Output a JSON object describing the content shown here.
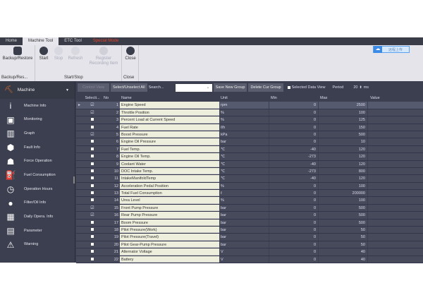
{
  "tabs": [
    "Home",
    "Machine Tool",
    "ETC Tool",
    "Special Mode"
  ],
  "ribbon": {
    "backup_label": "Backup/Restore",
    "backup_group": "Backup/Res...",
    "start": "Start",
    "stop": "Stop",
    "refresh": "Refresh",
    "register": "Register Recording Item",
    "startstop_group": "Start/Stop",
    "close": "Close",
    "close_group": "Close"
  },
  "cloud_button": "远程上传",
  "sidebar": {
    "header": "Machine",
    "items": [
      {
        "label": "Machine Info",
        "icon": "info-icon",
        "glyph": "i"
      },
      {
        "label": "Monitoring",
        "icon": "monitor-icon",
        "glyph": "▣"
      },
      {
        "label": "Graph",
        "icon": "graph-icon",
        "glyph": "▥"
      },
      {
        "label": "Fault Info",
        "icon": "fault-icon",
        "glyph": "⬢"
      },
      {
        "label": "Force Operation",
        "icon": "force-operation-icon",
        "glyph": "☗"
      },
      {
        "label": "Fuel Consumption",
        "icon": "fuel-icon",
        "glyph": "⛽"
      },
      {
        "label": "Operation Hours",
        "icon": "clock-icon",
        "glyph": "◷"
      },
      {
        "label": "Filter/Oil Info",
        "icon": "oil-drop-icon",
        "glyph": "●"
      },
      {
        "label": "Daily Opera. Info",
        "icon": "calendar-icon",
        "glyph": "▦"
      },
      {
        "label": "Parameter",
        "icon": "clipboard-icon",
        "glyph": "▤"
      },
      {
        "label": "Warning",
        "icon": "warning-icon",
        "glyph": "⚠"
      }
    ]
  },
  "toolbar": {
    "control_view": "Control View",
    "select_all": "Select/Unselect All",
    "search": "Search...",
    "save_group": "Save New Group",
    "delete_group": "Delete Cur Group",
    "selected_view": "Selected Data View",
    "period_label": "Period",
    "period_value": "20",
    "period_unit": "ms"
  },
  "columns": [
    "Selecti...",
    "No",
    "Name",
    "Unit",
    "Min",
    "Max",
    "Value"
  ],
  "rows": [
    {
      "checked": true,
      "no": "1",
      "name": "Engine Speed",
      "unit": "rpm",
      "min": "0",
      "max": "2500",
      "value": ""
    },
    {
      "checked": true,
      "no": "2",
      "name": "Throttle Position",
      "unit": "%",
      "min": "0",
      "max": "100",
      "value": ""
    },
    {
      "checked": false,
      "no": "3",
      "name": "Percent Load at Current Speed",
      "unit": "%",
      "min": "0",
      "max": "125",
      "value": ""
    },
    {
      "checked": false,
      "no": "4",
      "name": "Fuel Rate",
      "unit": "ℓ/h",
      "min": "0",
      "max": "150",
      "value": ""
    },
    {
      "checked": true,
      "no": "5",
      "name": "Boost Pressure",
      "unit": "kPa",
      "min": "0",
      "max": "500",
      "value": ""
    },
    {
      "checked": false,
      "no": "6",
      "name": "Engine Oil Pressure",
      "unit": "bar",
      "min": "0",
      "max": "10",
      "value": ""
    },
    {
      "checked": false,
      "no": "7",
      "name": "Fuel Temp.",
      "unit": "℃",
      "min": "-40",
      "max": "120",
      "value": ""
    },
    {
      "checked": false,
      "no": "8",
      "name": "Engine Oil Temp.",
      "unit": "℃",
      "min": "-273",
      "max": "120",
      "value": ""
    },
    {
      "checked": false,
      "no": "9",
      "name": "Coolant Water",
      "unit": "℃",
      "min": "-40",
      "max": "120",
      "value": ""
    },
    {
      "checked": false,
      "no": "10",
      "name": "DOC Intake Temp.",
      "unit": "℃",
      "min": "-273",
      "max": "800",
      "value": ""
    },
    {
      "checked": false,
      "no": "11",
      "name": "IntakeManifoldTemp",
      "unit": "℃",
      "min": "-40",
      "max": "120",
      "value": ""
    },
    {
      "checked": false,
      "no": "12",
      "name": "Acceleration Pedal Position",
      "unit": "%",
      "min": "0",
      "max": "100",
      "value": ""
    },
    {
      "checked": false,
      "no": "13",
      "name": "Total Fuel Consumption",
      "unit": "ℓ",
      "min": "0",
      "max": "200000",
      "value": ""
    },
    {
      "checked": false,
      "no": "14",
      "name": "Urea Level",
      "unit": "%",
      "min": "0",
      "max": "100",
      "value": ""
    },
    {
      "checked": true,
      "no": "15",
      "name": "Front Pump Pressure",
      "unit": "bar",
      "min": "0",
      "max": "500",
      "value": ""
    },
    {
      "checked": true,
      "no": "16",
      "name": "Rear Pump Pressure",
      "unit": "bar",
      "min": "0",
      "max": "500",
      "value": ""
    },
    {
      "checked": false,
      "no": "17",
      "name": "Boom Pressure",
      "unit": "bar",
      "min": "0",
      "max": "500",
      "value": ""
    },
    {
      "checked": false,
      "no": "18",
      "name": "Pilot Pressure(Work)",
      "unit": "bar",
      "min": "0",
      "max": "50",
      "value": ""
    },
    {
      "checked": false,
      "no": "19",
      "name": "Pilot Pressure(Travel)",
      "unit": "bar",
      "min": "0",
      "max": "50",
      "value": ""
    },
    {
      "checked": false,
      "no": "20",
      "name": "Pilot Gear-Pump Pressure",
      "unit": "bar",
      "min": "0",
      "max": "50",
      "value": ""
    },
    {
      "checked": false,
      "no": "21",
      "name": "Alternator Voltage",
      "unit": "V",
      "min": "0",
      "max": "40",
      "value": ""
    },
    {
      "checked": false,
      "no": "22",
      "name": "Battery",
      "unit": "V",
      "min": "0",
      "max": "40",
      "value": ""
    }
  ]
}
